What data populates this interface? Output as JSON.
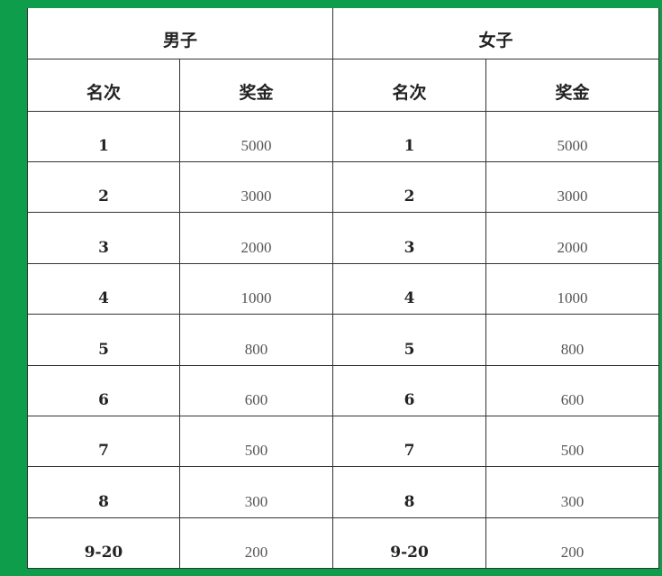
{
  "groups": [
    "男子",
    "女子"
  ],
  "columns": [
    "名次",
    "奖金"
  ],
  "rows": [
    {
      "rank": "1",
      "men": "5000",
      "women": "5000"
    },
    {
      "rank": "2",
      "men": "3000",
      "women": "3000"
    },
    {
      "rank": "3",
      "men": "2000",
      "women": "2000"
    },
    {
      "rank": "4",
      "men": "1000",
      "women": "1000"
    },
    {
      "rank": "5",
      "men": "800",
      "women": "800"
    },
    {
      "rank": "6",
      "men": "600",
      "women": "600"
    },
    {
      "rank": "7",
      "men": "500",
      "women": "500"
    },
    {
      "rank": "8",
      "men": "300",
      "women": "300"
    },
    {
      "rank": "9-20",
      "men": "200",
      "women": "200"
    }
  ],
  "colors": {
    "background": "#0e9d4a",
    "table": "#ffffff",
    "border": "#333333"
  }
}
